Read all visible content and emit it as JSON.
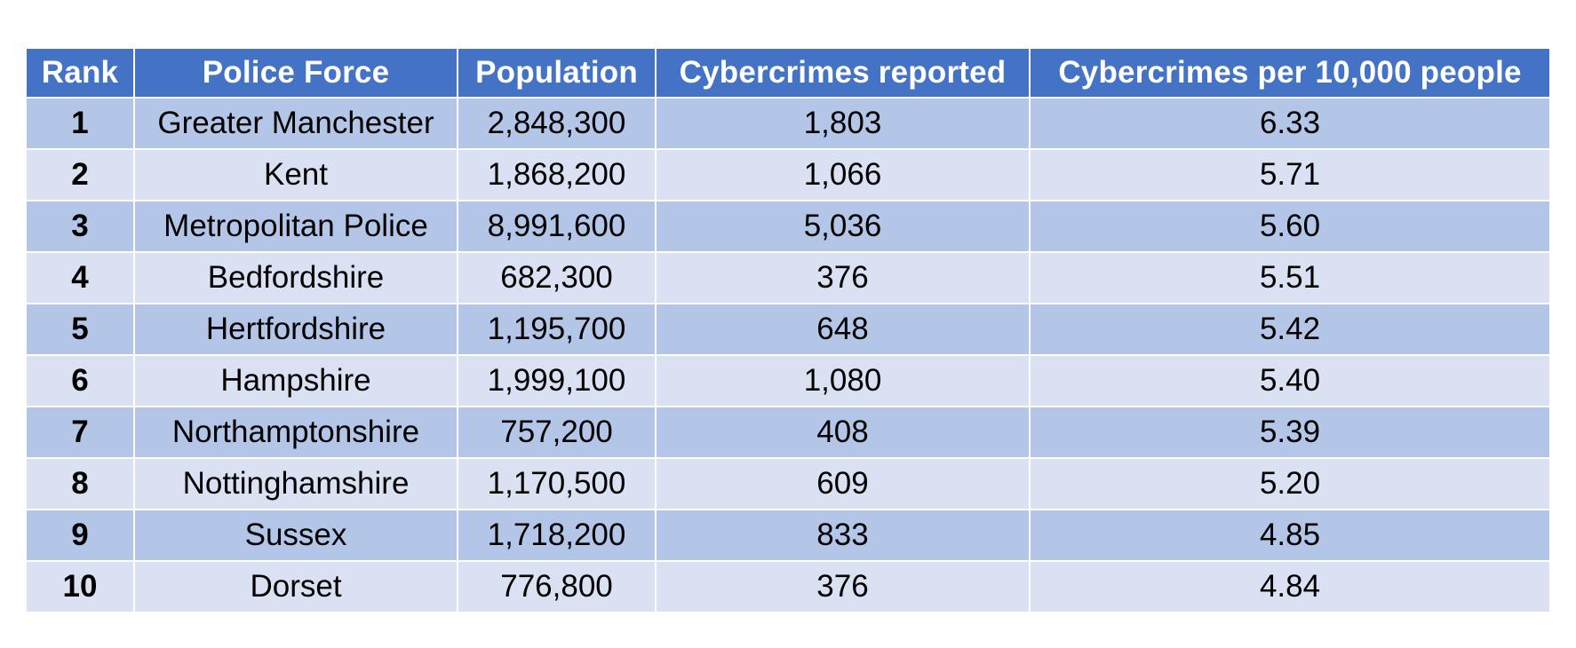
{
  "chart_data": {
    "type": "table",
    "columns": [
      "Rank",
      "Police Force",
      "Population",
      "Cybercrimes reported",
      "Cybercrimes per 10,000 people"
    ],
    "rows": [
      [
        "1",
        "Greater Manchester",
        "2,848,300",
        "1,803",
        "6.33"
      ],
      [
        "2",
        "Kent",
        "1,868,200",
        "1,066",
        "5.71"
      ],
      [
        "3",
        "Metropolitan Police",
        "8,991,600",
        "5,036",
        "5.60"
      ],
      [
        "4",
        "Bedfordshire",
        "682,300",
        "376",
        "5.51"
      ],
      [
        "5",
        "Hertfordshire",
        "1,195,700",
        "648",
        "5.42"
      ],
      [
        "6",
        "Hampshire",
        "1,999,100",
        "1,080",
        "5.40"
      ],
      [
        "7",
        "Northamptonshire",
        "757,200",
        "408",
        "5.39"
      ],
      [
        "8",
        "Nottinghamshire",
        "1,170,500",
        "609",
        "5.20"
      ],
      [
        "9",
        "Sussex",
        "1,718,200",
        "833",
        "4.85"
      ],
      [
        "10",
        "Dorset",
        "776,800",
        "376",
        "4.84"
      ]
    ],
    "colors": {
      "header_bg": "#4472c4",
      "header_text": "#ffffff",
      "row_odd_bg": "#b4c6e7",
      "row_even_bg": "#d9e1f2",
      "cell_text": "#000000"
    }
  }
}
